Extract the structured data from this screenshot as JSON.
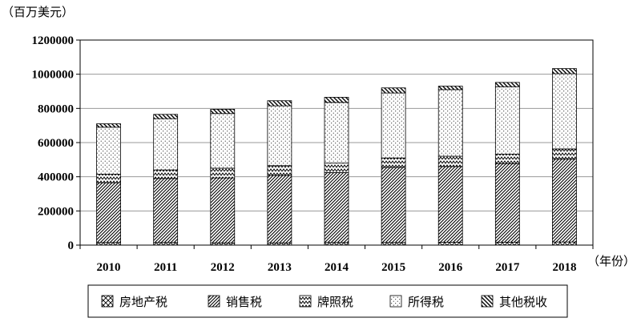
{
  "chart_data": {
    "type": "bar",
    "stacked": true,
    "ylabel": "（百万美元）",
    "xlabel": "（年份）",
    "ylim": [
      0,
      1200000
    ],
    "yticks": [
      0,
      200000,
      400000,
      600000,
      800000,
      1000000,
      1200000
    ],
    "ytick_labels": [
      "0",
      "200000",
      "400000",
      "600000",
      "800000",
      "1000000",
      "1200000"
    ],
    "grid": true,
    "legend_position": "bottom",
    "categories": [
      "2010",
      "2011",
      "2012",
      "2013",
      "2014",
      "2015",
      "2016",
      "2017",
      "2018"
    ],
    "series": [
      {
        "name": "房地产税",
        "pattern": "cross",
        "values": [
          15000,
          15000,
          13000,
          13000,
          15000,
          15000,
          17000,
          17000,
          18000
        ]
      },
      {
        "name": "销售税",
        "pattern": "dense-diagonal",
        "values": [
          350000,
          375000,
          380000,
          395000,
          410000,
          440000,
          443000,
          460000,
          485000
        ]
      },
      {
        "name": "牌照税",
        "pattern": "zigzag",
        "values": [
          50000,
          50000,
          57000,
          57000,
          55000,
          55000,
          60000,
          55000,
          60000
        ]
      },
      {
        "name": "所得税",
        "pattern": "dots",
        "values": [
          275000,
          300000,
          320000,
          350000,
          355000,
          380000,
          390000,
          395000,
          440000
        ]
      },
      {
        "name": "其他税收",
        "pattern": "back-diagonal",
        "values": [
          20000,
          25000,
          25000,
          30000,
          30000,
          30000,
          20000,
          25000,
          30000
        ]
      }
    ]
  }
}
